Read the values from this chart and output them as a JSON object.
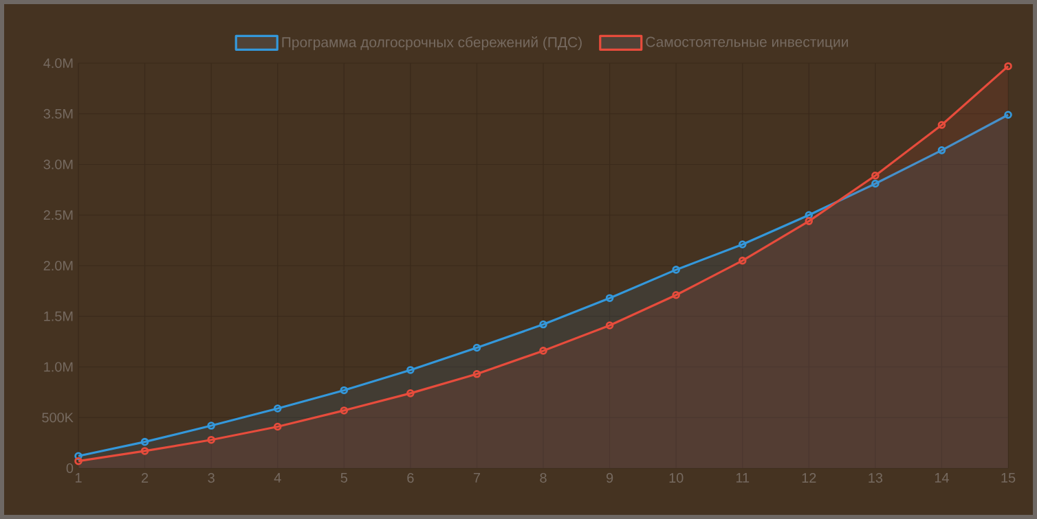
{
  "chart_data": {
    "type": "area",
    "x": [
      1,
      2,
      3,
      4,
      5,
      6,
      7,
      8,
      9,
      10,
      11,
      12,
      13,
      14,
      15
    ],
    "series": [
      {
        "name": "Программа долгосрочных сбережений (ПДС)",
        "color": "#3498db",
        "values": [
          120000,
          260000,
          420000,
          590000,
          770000,
          970000,
          1190000,
          1420000,
          1680000,
          1960000,
          2210000,
          2500000,
          2810000,
          3140000,
          3490000
        ]
      },
      {
        "name": "Самостоятельные инвестиции",
        "color": "#e74c3c",
        "values": [
          70000,
          170000,
          280000,
          410000,
          570000,
          740000,
          930000,
          1160000,
          1410000,
          1710000,
          2050000,
          2440000,
          2890000,
          3390000,
          3970000
        ]
      }
    ],
    "xlim": [
      1,
      15
    ],
    "xticks": [
      1,
      2,
      3,
      4,
      5,
      6,
      7,
      8,
      9,
      10,
      11,
      12,
      13,
      14,
      15
    ],
    "ylim": [
      0,
      4000000
    ],
    "yticks": [
      0,
      {
        "value": 500000,
        "label": "500K"
      },
      {
        "value": 1000000,
        "label": "1.0M"
      },
      {
        "value": 1500000,
        "label": "1.5M"
      },
      {
        "value": 2000000,
        "label": "2.0M"
      },
      {
        "value": 2500000,
        "label": "2.5M"
      },
      {
        "value": 3000000,
        "label": "3.0M"
      },
      {
        "value": 3500000,
        "label": "3.5M"
      },
      {
        "value": 4000000,
        "label": "4.0M"
      }
    ],
    "grid": true,
    "legend": "top",
    "marker": "circle",
    "line_style": "solid"
  }
}
